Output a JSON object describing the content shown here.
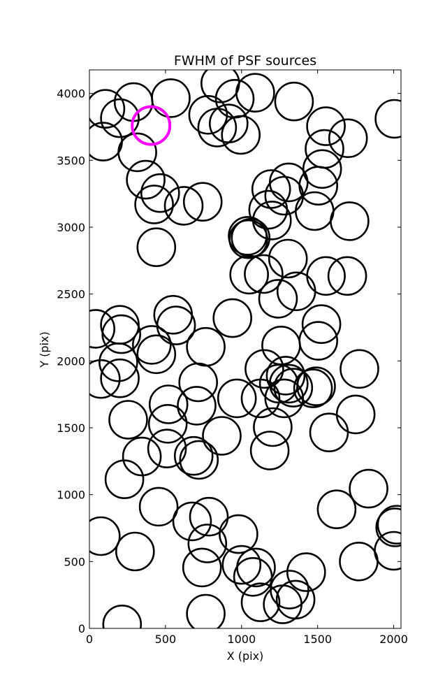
{
  "chart_data": {
    "type": "scatter",
    "title": "FWHM of PSF sources",
    "xlabel": "X (pix)",
    "ylabel": "Y (pix)",
    "xlim": [
      0,
      2048
    ],
    "ylim": [
      0,
      4176
    ],
    "xticks": [
      0,
      500,
      1000,
      1500,
      2000
    ],
    "yticks": [
      0,
      500,
      1000,
      1500,
      2000,
      2500,
      3000,
      3500,
      4000
    ],
    "grid": false,
    "marker": "open-circle",
    "circle_radius_pix": 124,
    "series": [
      {
        "color": "#000000",
        "points": [
          {
            "x": 105,
            "y": 3885
          },
          {
            "x": 200,
            "y": 3815
          },
          {
            "x": 290,
            "y": 3935
          },
          {
            "x": 535,
            "y": 3965
          },
          {
            "x": 860,
            "y": 4075
          },
          {
            "x": 955,
            "y": 3960
          },
          {
            "x": 1090,
            "y": 4005
          },
          {
            "x": 1345,
            "y": 3940
          },
          {
            "x": 2005,
            "y": 3810
          },
          {
            "x": 90,
            "y": 3640
          },
          {
            "x": 315,
            "y": 3560
          },
          {
            "x": 780,
            "y": 3840
          },
          {
            "x": 840,
            "y": 3745
          },
          {
            "x": 915,
            "y": 3775
          },
          {
            "x": 995,
            "y": 3690
          },
          {
            "x": 1555,
            "y": 3755
          },
          {
            "x": 1700,
            "y": 3665
          },
          {
            "x": 1545,
            "y": 3585
          },
          {
            "x": 1530,
            "y": 3435
          },
          {
            "x": 1505,
            "y": 3310
          },
          {
            "x": 1480,
            "y": 3120
          },
          {
            "x": 1710,
            "y": 3045
          },
          {
            "x": 370,
            "y": 3355
          },
          {
            "x": 465,
            "y": 3255
          },
          {
            "x": 425,
            "y": 3170
          },
          {
            "x": 620,
            "y": 3160
          },
          {
            "x": 745,
            "y": 3190
          },
          {
            "x": 1195,
            "y": 3285
          },
          {
            "x": 1310,
            "y": 3335
          },
          {
            "x": 1280,
            "y": 3235
          },
          {
            "x": 1175,
            "y": 3130
          },
          {
            "x": 1200,
            "y": 3050
          },
          {
            "x": 1040,
            "y": 2935
          },
          {
            "x": 1045,
            "y": 2910
          },
          {
            "x": 1060,
            "y": 2920
          },
          {
            "x": 440,
            "y": 2850
          },
          {
            "x": 1305,
            "y": 2765
          },
          {
            "x": 1555,
            "y": 2635
          },
          {
            "x": 1695,
            "y": 2635
          },
          {
            "x": 1050,
            "y": 2645
          },
          {
            "x": 1145,
            "y": 2650
          },
          {
            "x": 1240,
            "y": 2465
          },
          {
            "x": 1360,
            "y": 2520
          },
          {
            "x": 40,
            "y": 2240
          },
          {
            "x": 200,
            "y": 2270
          },
          {
            "x": 210,
            "y": 2200
          },
          {
            "x": 550,
            "y": 2345
          },
          {
            "x": 570,
            "y": 2265
          },
          {
            "x": 940,
            "y": 2320
          },
          {
            "x": 1525,
            "y": 2275
          },
          {
            "x": 410,
            "y": 2120
          },
          {
            "x": 440,
            "y": 2050
          },
          {
            "x": 765,
            "y": 2105
          },
          {
            "x": 1260,
            "y": 2115
          },
          {
            "x": 1505,
            "y": 2150
          },
          {
            "x": 190,
            "y": 1990
          },
          {
            "x": 200,
            "y": 1870
          },
          {
            "x": 75,
            "y": 1865
          },
          {
            "x": 1150,
            "y": 1940
          },
          {
            "x": 1290,
            "y": 1890
          },
          {
            "x": 1310,
            "y": 1830
          },
          {
            "x": 1245,
            "y": 1830
          },
          {
            "x": 1340,
            "y": 1800
          },
          {
            "x": 1280,
            "y": 1720
          },
          {
            "x": 1490,
            "y": 1810
          },
          {
            "x": 1470,
            "y": 1795
          },
          {
            "x": 1775,
            "y": 1940
          },
          {
            "x": 715,
            "y": 1840
          },
          {
            "x": 705,
            "y": 1665
          },
          {
            "x": 970,
            "y": 1720
          },
          {
            "x": 1125,
            "y": 1720
          },
          {
            "x": 520,
            "y": 1675
          },
          {
            "x": 515,
            "y": 1530
          },
          {
            "x": 255,
            "y": 1560
          },
          {
            "x": 1750,
            "y": 1600
          },
          {
            "x": 1575,
            "y": 1465
          },
          {
            "x": 1205,
            "y": 1505
          },
          {
            "x": 870,
            "y": 1440
          },
          {
            "x": 510,
            "y": 1345
          },
          {
            "x": 345,
            "y": 1285
          },
          {
            "x": 685,
            "y": 1290
          },
          {
            "x": 720,
            "y": 1260
          },
          {
            "x": 1185,
            "y": 1330
          },
          {
            "x": 230,
            "y": 1115
          },
          {
            "x": 1835,
            "y": 1045
          },
          {
            "x": 455,
            "y": 910
          },
          {
            "x": 1625,
            "y": 890
          },
          {
            "x": 675,
            "y": 800
          },
          {
            "x": 785,
            "y": 835
          },
          {
            "x": 775,
            "y": 635
          },
          {
            "x": 980,
            "y": 705
          },
          {
            "x": 2020,
            "y": 775
          },
          {
            "x": 2010,
            "y": 755
          },
          {
            "x": 75,
            "y": 690
          },
          {
            "x": 300,
            "y": 575
          },
          {
            "x": 2000,
            "y": 580
          },
          {
            "x": 1770,
            "y": 500
          },
          {
            "x": 740,
            "y": 455
          },
          {
            "x": 1000,
            "y": 475
          },
          {
            "x": 1095,
            "y": 455
          },
          {
            "x": 1075,
            "y": 385
          },
          {
            "x": 1425,
            "y": 420
          },
          {
            "x": 1125,
            "y": 195
          },
          {
            "x": 1270,
            "y": 180
          },
          {
            "x": 1315,
            "y": 290
          },
          {
            "x": 1355,
            "y": 215
          },
          {
            "x": 765,
            "y": 110
          },
          {
            "x": 215,
            "y": 30
          }
        ]
      },
      {
        "color": "#ff00ff",
        "points": [
          {
            "x": 405,
            "y": 3760
          }
        ]
      }
    ]
  }
}
